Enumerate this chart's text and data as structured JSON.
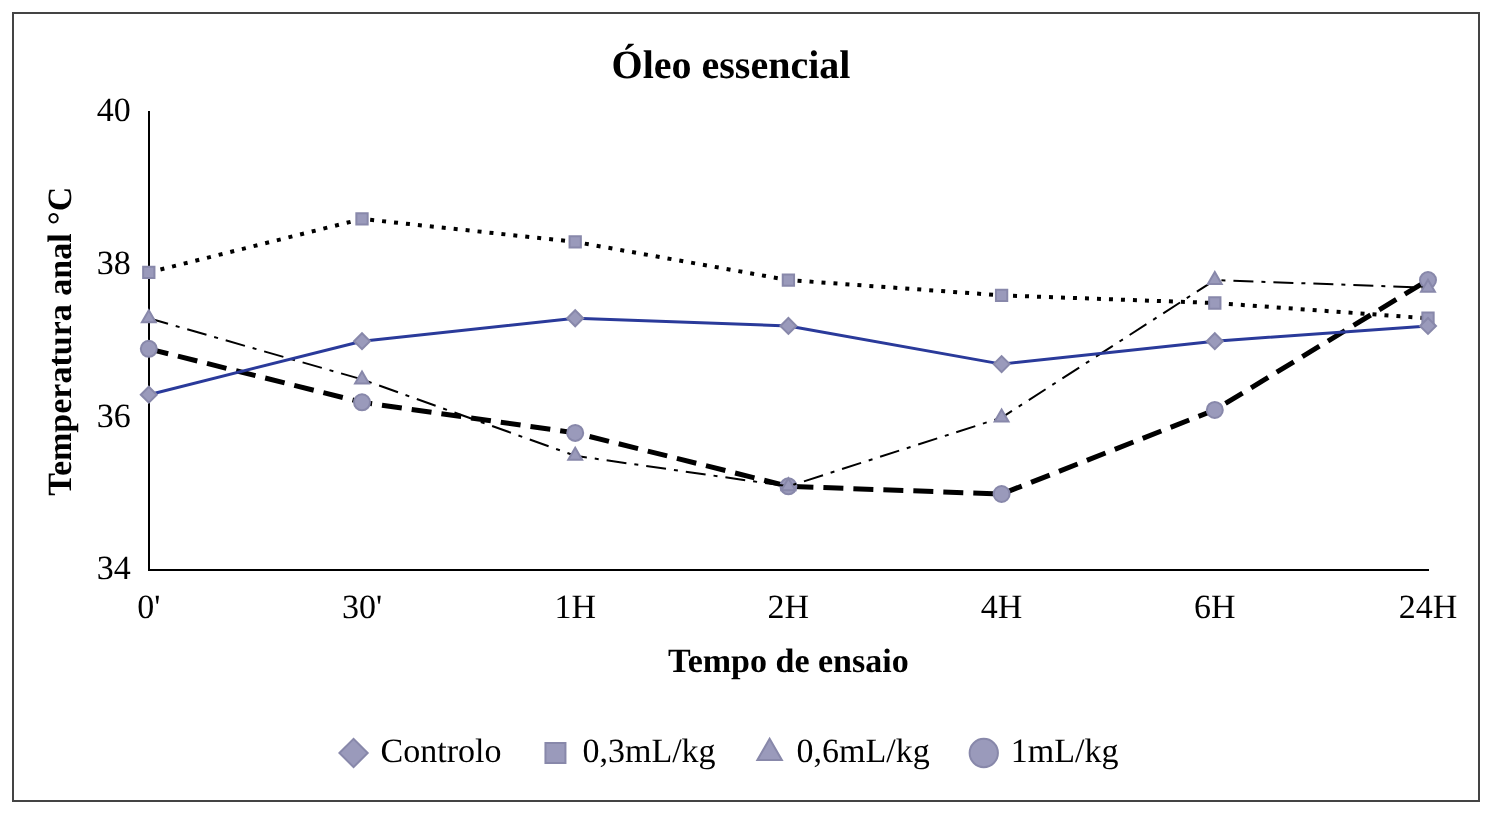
{
  "chart_data": {
    "type": "line",
    "title": "Óleo essencial",
    "xlabel": "Tempo de ensaio",
    "ylabel": "Temperatura anal °C",
    "categories": [
      "0'",
      "30'",
      "1H",
      "2H",
      "4H",
      "6H",
      "24H"
    ],
    "series": [
      {
        "name": "Controlo",
        "color": "#2a3a9a",
        "marker": "diamond",
        "line_style": "solid",
        "values": [
          36.3,
          37.0,
          37.3,
          37.2,
          36.7,
          37.0,
          37.2
        ]
      },
      {
        "name": "0,3mL/kg",
        "color": "#000000",
        "marker": "square",
        "line_style": "dotted",
        "values": [
          37.9,
          38.6,
          38.3,
          37.8,
          37.6,
          37.5,
          37.3
        ]
      },
      {
        "name": "0,6mL/kg",
        "color": "#000000",
        "marker": "triangle",
        "line_style": "dashdot",
        "values": [
          37.3,
          36.5,
          35.5,
          35.1,
          36.0,
          37.8,
          37.7
        ]
      },
      {
        "name": "1mL/kg",
        "color": "#000000",
        "marker": "circle",
        "line_style": "dashed",
        "values": [
          36.9,
          36.2,
          35.8,
          35.1,
          35.0,
          36.1,
          37.8
        ]
      }
    ],
    "ylim": [
      34,
      40
    ],
    "yticks": [
      34,
      36,
      38,
      40
    ],
    "grid": false,
    "legend": "bottom"
  }
}
